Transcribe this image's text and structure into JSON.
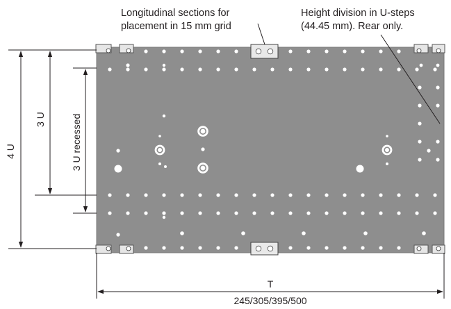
{
  "annotations": {
    "longitudinal_line1": "Longitudinal sections for",
    "longitudinal_line2": "placement in 15 mm grid",
    "height_line1": "Height division in U-steps",
    "height_line2": "(44.45 mm). Rear only."
  },
  "dimensions": {
    "four_u": "4 U",
    "three_u": "3 U",
    "three_u_recessed": "3 U recessed",
    "width_symbol": "T",
    "width_values": "245/305/395/500"
  },
  "colors": {
    "plate": "#8e8e8e",
    "plate_edge": "#7a7a7a",
    "hole": "#ffffff",
    "line": "#231f20",
    "bracket": "#e6e6e6"
  }
}
